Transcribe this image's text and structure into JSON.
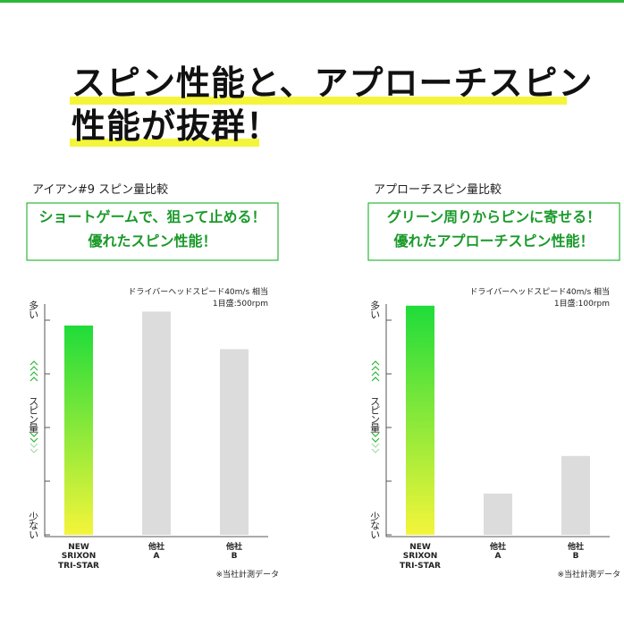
{
  "header": {
    "lines": [
      "スピン性能と、アプローチスピン",
      "性能が抜群！"
    ]
  },
  "chart_data": [
    {
      "type": "bar",
      "subtitle": "アイアン#9 スピン量比較",
      "callout": [
        "ショートゲームで、狙って止める！",
        "優れたスピン性能！"
      ],
      "condition": "ドライバーヘッドスピード40m/s 相当",
      "scale_note": "1目盛:500rpm",
      "source": "※当社計測データ",
      "y_high": "多い",
      "y_low": "少ない",
      "y_label": "スピン量",
      "categories": [
        "NEW\nSRIXON\nTRI-STAR",
        "他社\nA",
        "他社\nB"
      ],
      "values": [
        1950,
        2080,
        1730
      ],
      "colors": [
        [
          "#1fdc3a",
          "#f4f53a"
        ],
        "#dcdcdc",
        "#dcdcdc"
      ],
      "ylim": [
        0,
        2150
      ],
      "yticks": [
        0,
        500,
        1000,
        1500,
        2000
      ]
    },
    {
      "type": "bar",
      "subtitle": "アプローチスピン量比較",
      "callout": [
        "グリーン周りからピンに寄せる！",
        "優れたアプローチスピン性能！"
      ],
      "condition": "ドライバーヘッドスピード40m/s 相当",
      "scale_note": "1目盛:100rpm",
      "source": "※当社計測データ",
      "y_high": "多い",
      "y_low": "少ない",
      "y_label": "スピン量",
      "categories": [
        "NEW\nSRIXON\nTRI-STAR",
        "他社\nA",
        "他社\nB"
      ],
      "values": [
        427,
        77,
        147
      ],
      "colors": [
        [
          "#1fdc3a",
          "#f4f53a"
        ],
        "#dcdcdc",
        "#dcdcdc"
      ],
      "ylim": [
        0,
        430
      ],
      "yticks": [
        0,
        100,
        200,
        300,
        400
      ]
    }
  ]
}
